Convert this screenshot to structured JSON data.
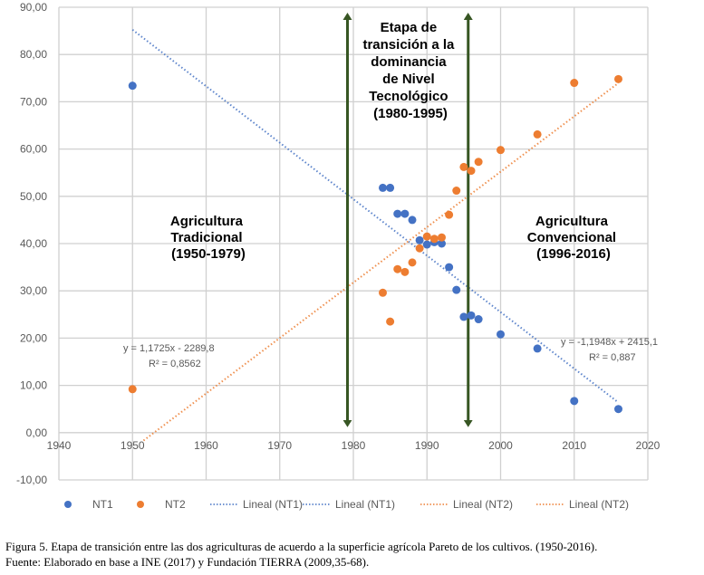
{
  "chart_data": {
    "type": "scatter",
    "title": "",
    "xlabel": "",
    "ylabel": "",
    "xlim": [
      1940,
      2020
    ],
    "ylim": [
      -10,
      90
    ],
    "xticks": [
      1940,
      1950,
      1960,
      1970,
      1980,
      1990,
      2000,
      2010,
      2020
    ],
    "yticks": [
      -10,
      0,
      10,
      20,
      30,
      40,
      50,
      60,
      70,
      80,
      90
    ],
    "ytick_labels": [
      "-10,00",
      "0,00",
      "10,00",
      "20,00",
      "30,00",
      "40,00",
      "50,00",
      "60,00",
      "70,00",
      "80,00",
      "90,00"
    ],
    "xtick_labels": [
      "1940",
      "1950",
      "1960",
      "1970",
      "1980",
      "1990",
      "2000",
      "2010",
      "2020"
    ],
    "grid": true,
    "legend_position": "bottom",
    "series": [
      {
        "name": "NT1",
        "color": "#4472C4",
        "points": [
          [
            1950,
            73.4
          ],
          [
            1984,
            51.8
          ],
          [
            1985,
            51.8
          ],
          [
            1986,
            46.3
          ],
          [
            1987,
            46.3
          ],
          [
            1988,
            45.0
          ],
          [
            1989,
            40.7
          ],
          [
            1990,
            39.8
          ],
          [
            1991,
            40.3
          ],
          [
            1992,
            40.0
          ],
          [
            1993,
            35.0
          ],
          [
            1994,
            30.2
          ],
          [
            1995,
            24.5
          ],
          [
            1996,
            24.8
          ],
          [
            1997,
            24.0
          ],
          [
            2000,
            20.8
          ],
          [
            2005,
            17.8
          ],
          [
            2010,
            6.7
          ],
          [
            2016,
            5.0
          ]
        ]
      },
      {
        "name": "NT2",
        "color": "#ED7D31",
        "points": [
          [
            1950,
            9.2
          ],
          [
            1984,
            29.6
          ],
          [
            1985,
            23.5
          ],
          [
            1986,
            34.6
          ],
          [
            1987,
            34.0
          ],
          [
            1988,
            36.0
          ],
          [
            1989,
            39.0
          ],
          [
            1990,
            41.5
          ],
          [
            1991,
            41.0
          ],
          [
            1992,
            41.3
          ],
          [
            1993,
            46.1
          ],
          [
            1994,
            51.2
          ],
          [
            1995,
            56.2
          ],
          [
            1996,
            55.4
          ],
          [
            1997,
            57.3
          ],
          [
            2000,
            59.8
          ],
          [
            2005,
            63.1
          ],
          [
            2010,
            74.0
          ],
          [
            2016,
            74.8
          ]
        ]
      }
    ],
    "trendlines": [
      {
        "name": "Lineal (NT1)",
        "color": "#4472C4",
        "slope": -1.1948,
        "intercept": 2415.1,
        "x_range": [
          1950,
          2016
        ],
        "equation": "y = -1,1948x + 2415,1",
        "r2": "R² = 0,887"
      },
      {
        "name": "Lineal (NT2)",
        "color": "#ED7D31",
        "slope": 1.1725,
        "intercept": -2289.8,
        "x_range": [
          1951.5,
          2016
        ],
        "equation": "y = 1,1725x - 2289,8",
        "r2": "R² = 0,8562"
      }
    ],
    "vertical_arrows": [
      {
        "x": 1979.2,
        "color": "#375623"
      },
      {
        "x": 1995.6,
        "color": "#375623"
      }
    ],
    "annotations": {
      "traditional": [
        "Agricultura",
        "Tradicional",
        "(1950-1979)"
      ],
      "transition": [
        "Etapa de",
        "transición a la",
        "dominancia",
        "de Nivel",
        "Tecnológico",
        "(1980-1995)"
      ],
      "conventional": [
        "Agricultura",
        "Convencional",
        "(1996-2016)"
      ]
    },
    "legend": [
      {
        "label": "NT1",
        "kind": "marker",
        "color": "#4472C4"
      },
      {
        "label": "NT2",
        "kind": "marker",
        "color": "#ED7D31"
      },
      {
        "label": "Lineal (NT1)",
        "kind": "dotted",
        "color": "#4472C4"
      },
      {
        "label": "Lineal (NT1)",
        "kind": "dotted",
        "color": "#4472C4"
      },
      {
        "label": "Lineal (NT2)",
        "kind": "dotted",
        "color": "#ED7D31"
      },
      {
        "label": "Lineal (NT2)",
        "kind": "dotted",
        "color": "#ED7D31"
      }
    ]
  },
  "caption": {
    "line1": "Figura 5.  Etapa de transición entre las dos agriculturas de acuerdo a la superficie agrícola Pareto de los cultivos. (1950-2016).",
    "line2": "Fuente:  Elaborado en base a INE (2017) y Fundación TIERRA (2009,35-68)."
  }
}
